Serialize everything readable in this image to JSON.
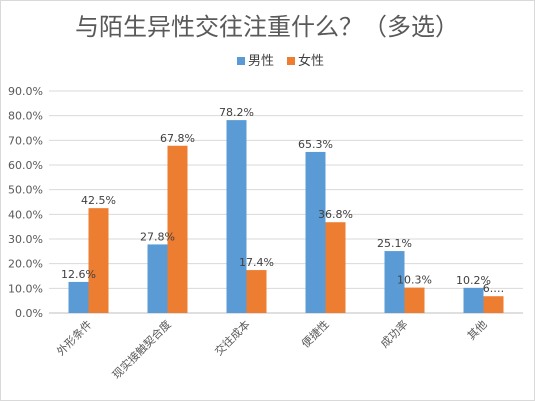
{
  "chart_data": {
    "type": "bar",
    "title": "与陌生异性交往注重什么？（多选）",
    "categories": [
      "外形条件",
      "现实接触契合度",
      "交往成本",
      "便捷性",
      "成功率",
      "其他"
    ],
    "series": [
      {
        "name": "男性",
        "values": [
          12.6,
          27.8,
          78.2,
          65.3,
          25.1,
          10.2
        ],
        "labels": [
          "12.6%",
          "27.8%",
          "78.2%",
          "65.3%",
          "25.1%",
          "10.2%"
        ],
        "color": "#5b9bd5"
      },
      {
        "name": "女性",
        "values": [
          42.5,
          67.8,
          17.4,
          36.8,
          10.3,
          6.8
        ],
        "labels": [
          "42.5%",
          "67.8%",
          "17.4%",
          "36.8%",
          "10.3%",
          "6.…"
        ],
        "color": "#ed7d31"
      }
    ],
    "ylim": [
      0,
      90
    ],
    "yticks": [
      "0.0%",
      "10.0%",
      "20.0%",
      "30.0%",
      "40.0%",
      "50.0%",
      "60.0%",
      "70.0%",
      "80.0%",
      "90.0%"
    ],
    "grid": true,
    "legend_position": "top-center",
    "colors": {
      "grid": "#d9d9d9",
      "axis": "#bfbfbf"
    }
  }
}
